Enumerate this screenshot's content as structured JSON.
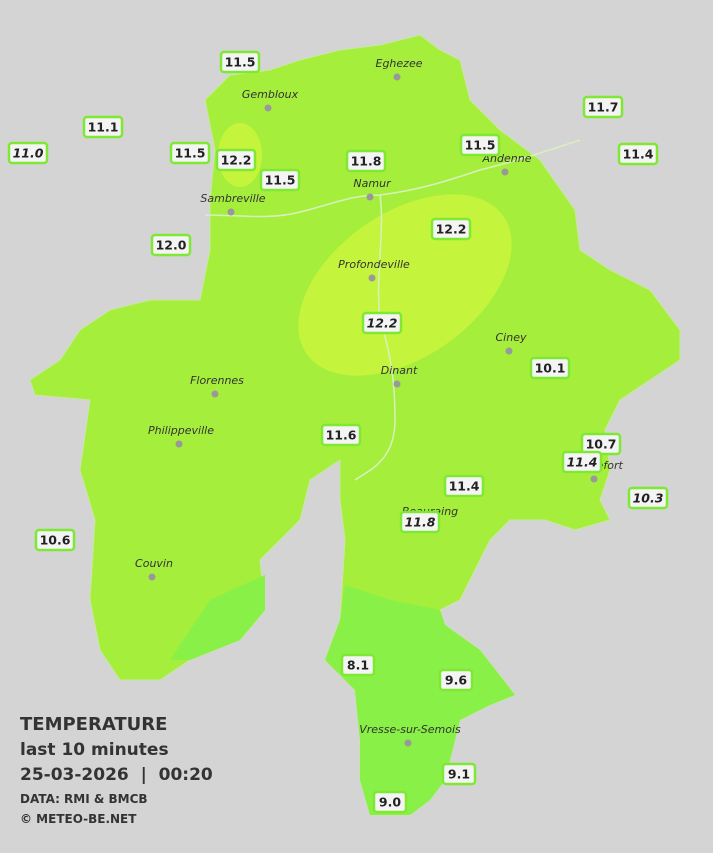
{
  "map": {
    "towns": [
      "Eghezee",
      "Gembloux",
      "Andenne",
      "Namur",
      "Sambreville",
      "Profondeville",
      "Ciney",
      "Dinant",
      "Florennes",
      "Philippeville",
      "Beauraing",
      "Rochefort",
      "Couvin",
      "Vresse-sur-Semois"
    ],
    "stations": [
      {
        "label": "11.5",
        "italic": false
      },
      {
        "label": "11.1",
        "italic": false
      },
      {
        "label": "11.0",
        "italic": true
      },
      {
        "label": "11.5",
        "italic": false
      },
      {
        "label": "12.2",
        "italic": false
      },
      {
        "label": "11.5",
        "italic": false
      },
      {
        "label": "11.8",
        "italic": false
      },
      {
        "label": "11.5",
        "italic": false
      },
      {
        "label": "11.7",
        "italic": false
      },
      {
        "label": "11.4",
        "italic": false
      },
      {
        "label": "12.0",
        "italic": false
      },
      {
        "label": "12.2",
        "italic": false
      },
      {
        "label": "12.2",
        "italic": true
      },
      {
        "label": "10.1",
        "italic": false
      },
      {
        "label": "11.6",
        "italic": false
      },
      {
        "label": "10.7",
        "italic": false
      },
      {
        "label": "11.4",
        "italic": true
      },
      {
        "label": "11.4",
        "italic": false
      },
      {
        "label": "11.8",
        "italic": true
      },
      {
        "label": "10.3",
        "italic": true
      },
      {
        "label": "10.6",
        "italic": false
      },
      {
        "label": "8.1",
        "italic": false
      },
      {
        "label": "9.6",
        "italic": false
      },
      {
        "label": "9.1",
        "italic": false
      },
      {
        "label": "9.0",
        "italic": false
      }
    ]
  },
  "legend": {
    "title": "TEMPERATURE",
    "period": "last 10 minutes",
    "datetime": "25-03-2026  |  00:20",
    "source": "DATA: RMI & BMCB",
    "copyright": "© METEO-BE.NET"
  }
}
